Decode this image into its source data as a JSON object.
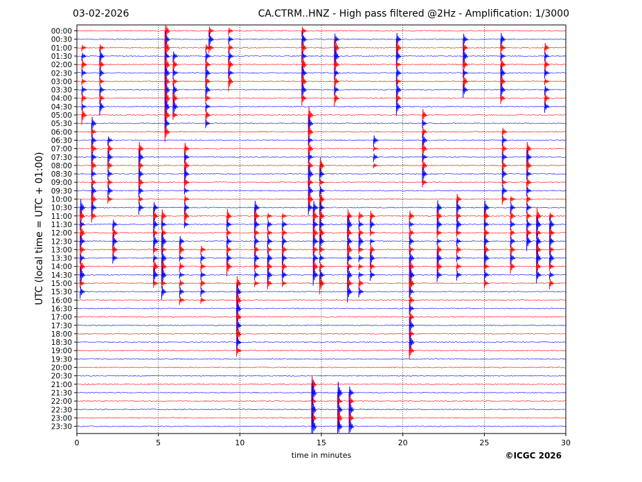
{
  "header": {
    "date": "03-02-2026",
    "title": "CA.CTRM..HNZ - High pass filtered @2Hz - Amplification: 1/3000"
  },
  "footer": {
    "copyright": "©ICGC 2026"
  },
  "chart_data": {
    "type": "line",
    "title": "CA.CTRM..HNZ - High pass filtered @2Hz - Amplification: 1/3000",
    "xlabel": "time in minutes",
    "ylabel": "UTC (local time = UTC + 01:00)",
    "xlim": [
      0,
      30
    ],
    "xticks": [
      "0",
      "5",
      "10",
      "15",
      "20",
      "25",
      "30"
    ],
    "grid": "vertical dotted lines at every 5 minutes",
    "row_labels": [
      "00:00",
      "00:30",
      "01:00",
      "01:30",
      "02:00",
      "02:30",
      "03:00",
      "03:30",
      "04:00",
      "04:30",
      "05:00",
      "05:30",
      "06:00",
      "06:30",
      "07:00",
      "07:30",
      "08:00",
      "08:30",
      "09:00",
      "09:30",
      "10:00",
      "10:30",
      "11:00",
      "11:30",
      "12:00",
      "12:30",
      "13:00",
      "13:30",
      "14:00",
      "14:30",
      "15:00",
      "15:30",
      "16:00",
      "16:30",
      "17:00",
      "17:30",
      "18:00",
      "18:30",
      "19:00",
      "19:30",
      "20:00",
      "20:30",
      "21:00",
      "21:30",
      "22:00",
      "22:30",
      "23:00",
      "23:30"
    ],
    "colors": {
      "trace_a": "#ff0000",
      "trace_b": "#0000ff",
      "grid": "#000000"
    },
    "events": [
      {
        "t": 5.4,
        "rows": [
          0,
          12
        ],
        "amp": 1.6
      },
      {
        "t": 8.1,
        "rows": [
          0,
          2
        ],
        "amp": 1.2
      },
      {
        "t": 5.9,
        "rows": [
          3,
          10
        ],
        "amp": 1.1
      },
      {
        "t": 1.4,
        "rows": [
          2,
          9
        ],
        "amp": 0.9
      },
      {
        "t": 0.3,
        "rows": [
          2,
          10
        ],
        "amp": 0.9
      },
      {
        "t": 7.9,
        "rows": [
          2,
          11
        ],
        "amp": 0.9
      },
      {
        "t": 9.3,
        "rows": [
          0,
          6
        ],
        "amp": 0.9
      },
      {
        "t": 13.8,
        "rows": [
          0,
          8
        ],
        "amp": 1.2
      },
      {
        "t": 15.8,
        "rows": [
          1,
          8
        ],
        "amp": 1.2
      },
      {
        "t": 19.6,
        "rows": [
          1,
          9
        ],
        "amp": 1.0
      },
      {
        "t": 23.7,
        "rows": [
          1,
          7
        ],
        "amp": 1.0
      },
      {
        "t": 26.0,
        "rows": [
          1,
          8
        ],
        "amp": 0.9
      },
      {
        "t": 28.7,
        "rows": [
          2,
          9
        ],
        "amp": 0.9
      },
      {
        "t": 0.9,
        "rows": [
          11,
          22
        ],
        "amp": 1.0
      },
      {
        "t": 1.9,
        "rows": [
          13,
          20
        ],
        "amp": 0.9
      },
      {
        "t": 3.8,
        "rows": [
          14,
          21
        ],
        "amp": 0.9
      },
      {
        "t": 6.6,
        "rows": [
          14,
          23
        ],
        "amp": 0.9
      },
      {
        "t": 14.2,
        "rows": [
          10,
          21
        ],
        "amp": 1.1
      },
      {
        "t": 14.9,
        "rows": [
          16,
          30
        ],
        "amp": 1.0
      },
      {
        "t": 18.2,
        "rows": [
          13,
          16
        ],
        "amp": 0.6
      },
      {
        "t": 21.2,
        "rows": [
          10,
          18
        ],
        "amp": 0.9
      },
      {
        "t": 26.1,
        "rows": [
          12,
          20
        ],
        "amp": 0.8
      },
      {
        "t": 27.6,
        "rows": [
          14,
          25
        ],
        "amp": 0.9
      },
      {
        "t": 0.2,
        "rows": [
          21,
          31
        ],
        "amp": 1.1
      },
      {
        "t": 2.2,
        "rows": [
          23,
          27
        ],
        "amp": 0.8
      },
      {
        "t": 4.7,
        "rows": [
          21,
          30
        ],
        "amp": 1.0
      },
      {
        "t": 5.2,
        "rows": [
          22,
          31
        ],
        "amp": 1.1
      },
      {
        "t": 6.3,
        "rows": [
          25,
          32
        ],
        "amp": 0.8
      },
      {
        "t": 7.6,
        "rows": [
          26,
          32
        ],
        "amp": 0.7
      },
      {
        "t": 9.2,
        "rows": [
          22,
          28
        ],
        "amp": 0.9
      },
      {
        "t": 10.9,
        "rows": [
          21,
          30
        ],
        "amp": 0.9
      },
      {
        "t": 11.7,
        "rows": [
          22,
          30
        ],
        "amp": 0.9
      },
      {
        "t": 12.6,
        "rows": [
          22,
          30
        ],
        "amp": 0.8
      },
      {
        "t": 14.5,
        "rows": [
          21,
          29
        ],
        "amp": 1.0
      },
      {
        "t": 16.6,
        "rows": [
          22,
          31
        ],
        "amp": 1.1
      },
      {
        "t": 17.3,
        "rows": [
          22,
          31
        ],
        "amp": 0.9
      },
      {
        "t": 18.0,
        "rows": [
          22,
          29
        ],
        "amp": 0.8
      },
      {
        "t": 20.4,
        "rows": [
          22,
          30
        ],
        "amp": 0.9
      },
      {
        "t": 22.1,
        "rows": [
          21,
          29
        ],
        "amp": 0.9
      },
      {
        "t": 23.3,
        "rows": [
          20,
          29
        ],
        "amp": 0.9
      },
      {
        "t": 25.0,
        "rows": [
          21,
          30
        ],
        "amp": 0.9
      },
      {
        "t": 26.6,
        "rows": [
          20,
          28
        ],
        "amp": 0.9
      },
      {
        "t": 28.2,
        "rows": [
          22,
          29
        ],
        "amp": 1.1
      },
      {
        "t": 29.0,
        "rows": [
          22,
          30
        ],
        "amp": 1.0
      },
      {
        "t": 9.8,
        "rows": [
          30,
          38
        ],
        "amp": 1.2
      },
      {
        "t": 20.4,
        "rows": [
          29,
          38
        ],
        "amp": 1.2
      },
      {
        "t": 14.4,
        "rows": [
          42,
          47
        ],
        "amp": 1.6
      },
      {
        "t": 16.0,
        "rows": [
          43,
          47
        ],
        "amp": 1.4
      },
      {
        "t": 16.7,
        "rows": [
          43,
          47
        ],
        "amp": 1.4
      }
    ]
  }
}
